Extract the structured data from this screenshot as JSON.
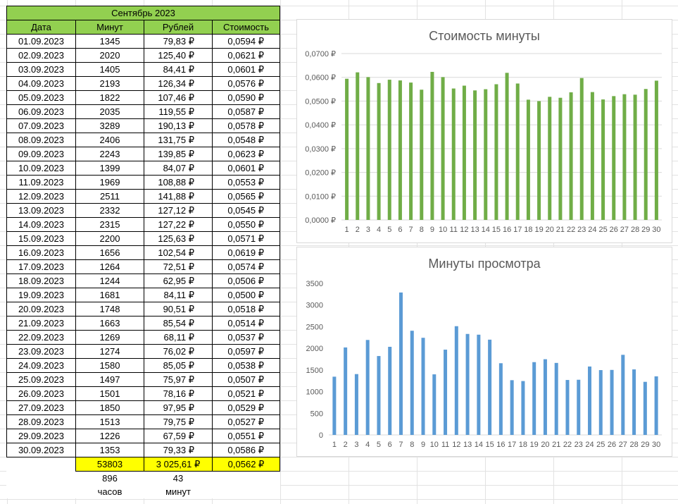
{
  "table": {
    "title": "Сентябрь 2023",
    "headers": [
      "Дата",
      "Минут",
      "Рублей",
      "Стоимость"
    ],
    "rows": [
      [
        "01.09.2023",
        "1345",
        "79,83 ₽",
        "0,0594 ₽"
      ],
      [
        "02.09.2023",
        "2020",
        "125,40 ₽",
        "0,0621 ₽"
      ],
      [
        "03.09.2023",
        "1405",
        "84,41 ₽",
        "0,0601 ₽"
      ],
      [
        "04.09.2023",
        "2193",
        "126,34 ₽",
        "0,0576 ₽"
      ],
      [
        "05.09.2023",
        "1822",
        "107,46 ₽",
        "0,0590 ₽"
      ],
      [
        "06.09.2023",
        "2035",
        "119,55 ₽",
        "0,0587 ₽"
      ],
      [
        "07.09.2023",
        "3289",
        "190,13 ₽",
        "0,0578 ₽"
      ],
      [
        "08.09.2023",
        "2406",
        "131,75 ₽",
        "0,0548 ₽"
      ],
      [
        "09.09.2023",
        "2243",
        "139,85 ₽",
        "0,0623 ₽"
      ],
      [
        "10.09.2023",
        "1399",
        "84,07 ₽",
        "0,0601 ₽"
      ],
      [
        "11.09.2023",
        "1969",
        "108,88 ₽",
        "0,0553 ₽"
      ],
      [
        "12.09.2023",
        "2511",
        "141,88 ₽",
        "0,0565 ₽"
      ],
      [
        "13.09.2023",
        "2332",
        "127,12 ₽",
        "0,0545 ₽"
      ],
      [
        "14.09.2023",
        "2315",
        "127,22 ₽",
        "0,0550 ₽"
      ],
      [
        "15.09.2023",
        "2200",
        "125,63 ₽",
        "0,0571 ₽"
      ],
      [
        "16.09.2023",
        "1656",
        "102,54 ₽",
        "0,0619 ₽"
      ],
      [
        "17.09.2023",
        "1264",
        "72,51 ₽",
        "0,0574 ₽"
      ],
      [
        "18.09.2023",
        "1244",
        "62,95 ₽",
        "0,0506 ₽"
      ],
      [
        "19.09.2023",
        "1681",
        "84,11 ₽",
        "0,0500 ₽"
      ],
      [
        "20.09.2023",
        "1748",
        "90,51 ₽",
        "0,0518 ₽"
      ],
      [
        "21.09.2023",
        "1663",
        "85,54 ₽",
        "0,0514 ₽"
      ],
      [
        "22.09.2023",
        "1269",
        "68,11 ₽",
        "0,0537 ₽"
      ],
      [
        "23.09.2023",
        "1274",
        "76,02 ₽",
        "0,0597 ₽"
      ],
      [
        "24.09.2023",
        "1580",
        "85,05 ₽",
        "0,0538 ₽"
      ],
      [
        "25.09.2023",
        "1497",
        "75,97 ₽",
        "0,0507 ₽"
      ],
      [
        "26.09.2023",
        "1501",
        "78,16 ₽",
        "0,0521 ₽"
      ],
      [
        "27.09.2023",
        "1850",
        "97,95 ₽",
        "0,0529 ₽"
      ],
      [
        "28.09.2023",
        "1513",
        "79,75 ₽",
        "0,0527 ₽"
      ],
      [
        "29.09.2023",
        "1226",
        "67,59 ₽",
        "0,0551 ₽"
      ],
      [
        "30.09.2023",
        "1353",
        "79,33 ₽",
        "0,0586 ₽"
      ]
    ],
    "totals": {
      "minutes": "53803",
      "rubles": "3 025,61 ₽",
      "cost": "0,0562 ₽"
    },
    "hours": {
      "value": "896",
      "label": "часов"
    },
    "minutes_rem": {
      "value": "43",
      "label": "минут"
    }
  },
  "colors": {
    "header_green": "#92d050",
    "total_yellow": "#ffff00",
    "bar_green": "#70ad47",
    "bar_blue": "#5b9bd5"
  },
  "chart_data": [
    {
      "type": "bar",
      "title": "Стоимость минуты",
      "categories": [
        "1",
        "2",
        "3",
        "4",
        "5",
        "6",
        "7",
        "8",
        "9",
        "10",
        "11",
        "12",
        "13",
        "14",
        "15",
        "16",
        "17",
        "18",
        "19",
        "20",
        "21",
        "22",
        "23",
        "24",
        "25",
        "26",
        "27",
        "28",
        "29",
        "30"
      ],
      "values": [
        0.0594,
        0.0621,
        0.0601,
        0.0576,
        0.059,
        0.0587,
        0.0578,
        0.0548,
        0.0623,
        0.0601,
        0.0553,
        0.0565,
        0.0545,
        0.055,
        0.0571,
        0.0619,
        0.0574,
        0.0506,
        0.05,
        0.0518,
        0.0514,
        0.0537,
        0.0597,
        0.0538,
        0.0507,
        0.0521,
        0.0529,
        0.0527,
        0.0551,
        0.0586
      ],
      "ylim": [
        0,
        0.07
      ],
      "yticks": [
        "0,0000 ₽",
        "0,0100 ₽",
        "0,0200 ₽",
        "0,0300 ₽",
        "0,0400 ₽",
        "0,0500 ₽",
        "0,0600 ₽",
        "0,0700 ₽"
      ],
      "grid": true
    },
    {
      "type": "bar",
      "title": "Минуты просмотра",
      "categories": [
        "1",
        "2",
        "3",
        "4",
        "5",
        "6",
        "7",
        "8",
        "9",
        "10",
        "11",
        "12",
        "13",
        "14",
        "15",
        "16",
        "17",
        "18",
        "19",
        "20",
        "21",
        "22",
        "23",
        "24",
        "25",
        "26",
        "27",
        "28",
        "29",
        "30"
      ],
      "values": [
        1345,
        2020,
        1405,
        2193,
        1822,
        2035,
        3289,
        2406,
        2243,
        1399,
        1969,
        2511,
        2332,
        2315,
        2200,
        1656,
        1264,
        1244,
        1681,
        1748,
        1663,
        1269,
        1274,
        1580,
        1497,
        1501,
        1850,
        1513,
        1226,
        1353
      ],
      "ylim": [
        0,
        3500
      ],
      "yticks": [
        "0",
        "500",
        "1000",
        "1500",
        "2000",
        "2500",
        "3000",
        "3500"
      ],
      "grid": false
    }
  ]
}
